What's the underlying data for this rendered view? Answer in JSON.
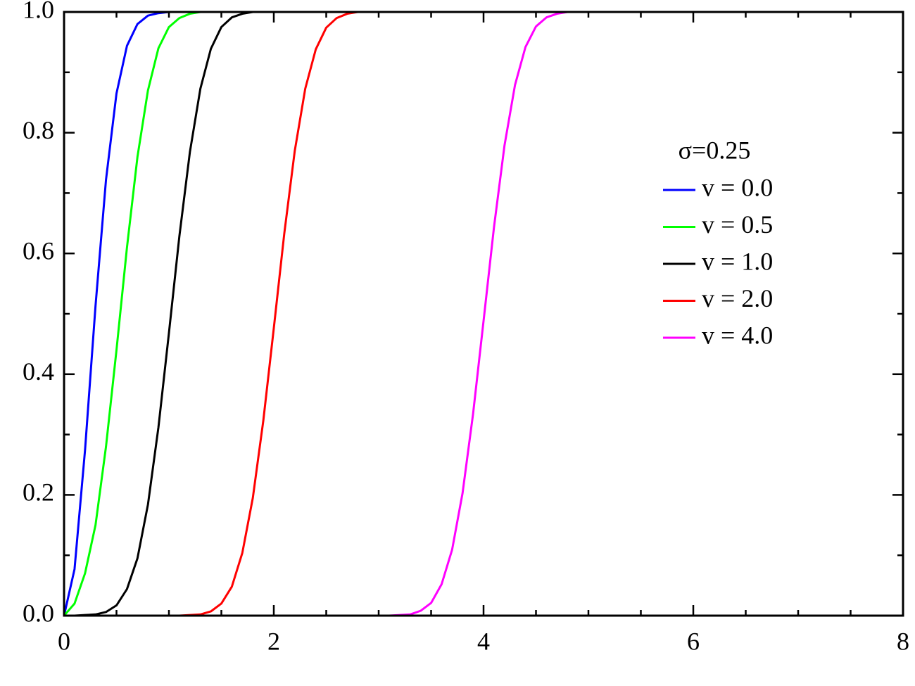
{
  "chart_data": {
    "type": "line",
    "legend_title": "σ=0.25",
    "x": [
      0,
      0.1,
      0.2,
      0.3,
      0.4,
      0.5,
      0.6,
      0.7,
      0.8,
      0.9,
      1,
      1.1,
      1.2,
      1.3,
      1.4,
      1.5,
      1.6,
      1.7,
      1.8,
      1.9,
      2,
      2.1,
      2.2,
      2.3,
      2.4,
      2.5,
      2.6,
      2.7,
      2.8,
      2.9,
      3,
      3.1,
      3.2,
      3.3,
      3.4,
      3.5,
      3.6,
      3.7,
      3.8,
      3.9,
      4,
      4.1,
      4.2,
      4.3,
      4.4,
      4.5,
      4.6,
      4.7,
      4.8,
      4.9,
      5,
      8
    ],
    "series": [
      {
        "name": "v = 0.0",
        "color": "#0000ff",
        "values": [
          0,
          0.077,
          0.274,
          0.513,
          0.722,
          0.865,
          0.944,
          0.98,
          0.994,
          0.998,
          1,
          1,
          1,
          1,
          1,
          1,
          1,
          1,
          1,
          1,
          1,
          1,
          1,
          1,
          1,
          1,
          1,
          1,
          1,
          1,
          1,
          1,
          1,
          1,
          1,
          1,
          1,
          1,
          1,
          1,
          1,
          1,
          1,
          1,
          1,
          1,
          1,
          1,
          1,
          1,
          1,
          1
        ]
      },
      {
        "name": "v = 0.5",
        "color": "#00ff00",
        "values": [
          0,
          0.02,
          0.07,
          0.15,
          0.28,
          0.44,
          0.61,
          0.76,
          0.87,
          0.94,
          0.975,
          0.99,
          0.997,
          1,
          1,
          1,
          1,
          1,
          1,
          1,
          1,
          1,
          1,
          1,
          1,
          1,
          1,
          1,
          1,
          1,
          1,
          1,
          1,
          1,
          1,
          1,
          1,
          1,
          1,
          1,
          1,
          1,
          1,
          1,
          1,
          1,
          1,
          1,
          1,
          1,
          1,
          1
        ]
      },
      {
        "name": "v = 1.0",
        "color": "#000000",
        "values": [
          0,
          0,
          0.001,
          0.002,
          0.006,
          0.017,
          0.044,
          0.095,
          0.184,
          0.312,
          0.468,
          0.629,
          0.768,
          0.873,
          0.939,
          0.975,
          0.991,
          0.997,
          1,
          1,
          1,
          1,
          1,
          1,
          1,
          1,
          1,
          1,
          1,
          1,
          1,
          1,
          1,
          1,
          1,
          1,
          1,
          1,
          1,
          1,
          1,
          1,
          1,
          1,
          1,
          1,
          1,
          1,
          1,
          1,
          1,
          1
        ]
      },
      {
        "name": "v = 2.0",
        "color": "#ff0000",
        "values": [
          0,
          0,
          0,
          0,
          0,
          0,
          0,
          0,
          0,
          0,
          0,
          0,
          0.001,
          0.002,
          0.007,
          0.02,
          0.048,
          0.104,
          0.195,
          0.323,
          0.476,
          0.633,
          0.77,
          0.873,
          0.938,
          0.974,
          0.99,
          0.997,
          1,
          1,
          1,
          1,
          1,
          1,
          1,
          1,
          1,
          1,
          1,
          1,
          1,
          1,
          1,
          1,
          1,
          1,
          1,
          1,
          1,
          1,
          1,
          1
        ]
      },
      {
        "name": "v = 4.0",
        "color": "#ff00ff",
        "values": [
          0,
          0,
          0,
          0,
          0,
          0,
          0,
          0,
          0,
          0,
          0,
          0,
          0,
          0,
          0,
          0,
          0,
          0,
          0,
          0,
          0,
          0,
          0,
          0,
          0,
          0,
          0,
          0,
          0,
          0,
          0,
          0,
          0.001,
          0.002,
          0.008,
          0.021,
          0.052,
          0.109,
          0.203,
          0.334,
          0.488,
          0.644,
          0.779,
          0.879,
          0.942,
          0.976,
          0.991,
          0.997,
          1,
          1,
          1,
          1
        ]
      }
    ],
    "xlim": [
      0,
      8
    ],
    "xticks": [
      0,
      2,
      4,
      6,
      8
    ],
    "x_minor_ticks": [
      0.5,
      1,
      1.5,
      2.5,
      3,
      3.5,
      4.5,
      5,
      5.5,
      6.5,
      7,
      7.5
    ],
    "ylim": [
      0,
      1
    ],
    "yticks": [
      {
        "value": 0,
        "label": "0.0"
      },
      0.2,
      0.4,
      0.6,
      0.8,
      {
        "value": 1,
        "label": "1.0"
      }
    ],
    "y_minor_ticks": [
      0.1,
      0.3,
      0.5,
      0.7,
      0.9
    ],
    "grid": false
  }
}
